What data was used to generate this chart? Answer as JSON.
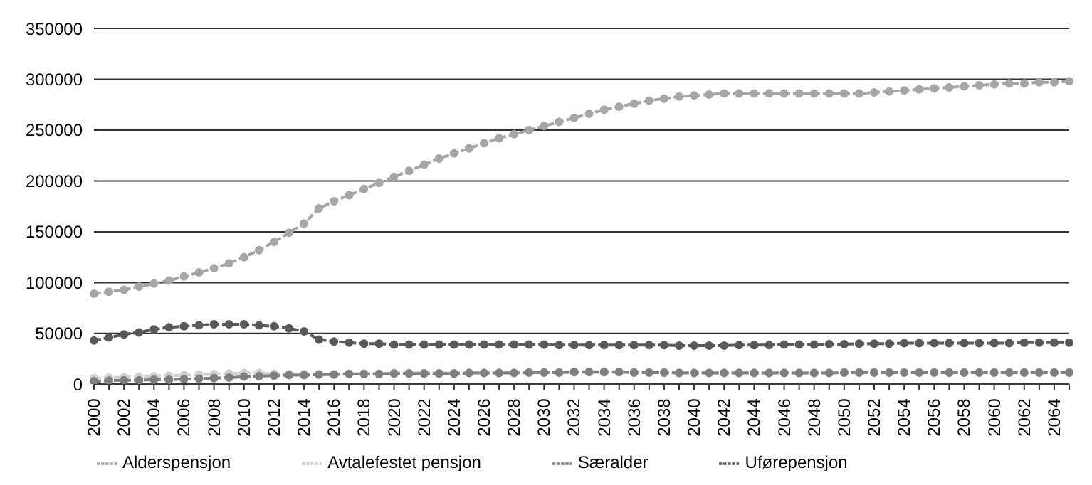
{
  "chart_data": {
    "type": "line",
    "categories": [
      "2000",
      null,
      "2002",
      null,
      "2004",
      null,
      "2006",
      null,
      "2008",
      null,
      "2010",
      null,
      "2012",
      null,
      "2014",
      null,
      "2016",
      null,
      "2018",
      null,
      "2020",
      null,
      "2022",
      null,
      "2024",
      null,
      "2026",
      null,
      "2028",
      null,
      "2030",
      null,
      "2032",
      null,
      "2034",
      null,
      "2036",
      null,
      "2038",
      null,
      "2040",
      null,
      "2042",
      null,
      "2044",
      null,
      "2046",
      null,
      "2048",
      null,
      "2050",
      null,
      "2052",
      null,
      "2054",
      null,
      "2056",
      null,
      "2058",
      null,
      "2060",
      null,
      "2062",
      null,
      "2064",
      null
    ],
    "series": [
      {
        "name": "Alderspensjon",
        "color": "#a6a6a6",
        "values": [
          89000,
          91000,
          93000,
          96000,
          99000,
          102000,
          106000,
          110000,
          114000,
          119000,
          125000,
          132000,
          140000,
          149000,
          158000,
          173000,
          180000,
          186000,
          192000,
          198000,
          204000,
          210000,
          216000,
          222000,
          227000,
          232000,
          237000,
          242000,
          246000,
          250000,
          254000,
          258000,
          262000,
          266000,
          270000,
          273000,
          276000,
          279000,
          281000,
          283000,
          284000,
          285000,
          286000,
          286000,
          286000,
          286000,
          286000,
          286000,
          286000,
          286000,
          286000,
          286000,
          287000,
          288000,
          289000,
          290000,
          291000,
          292000,
          293000,
          294000,
          295000,
          296000,
          296000,
          297000,
          297000,
          298000
        ]
      },
      {
        "name": "Avtalefestet pensjon",
        "color": "#d0d0d0",
        "values": [
          6000,
          6500,
          7000,
          7500,
          8000,
          8500,
          9000,
          9500,
          10000,
          10500,
          11000,
          11000,
          10500,
          10000,
          10000,
          10000,
          10000,
          10500,
          10500,
          10500,
          11000,
          11000,
          11000,
          11000,
          11000,
          11500,
          11500,
          11500,
          11500,
          12000,
          12000,
          12000,
          12500,
          12500,
          12500,
          12500,
          12000,
          12000,
          12000,
          11500,
          11500,
          11500,
          11500,
          11500,
          11500,
          11500,
          11500,
          11500,
          11500,
          11500,
          12000,
          12000,
          12000,
          12000,
          12000,
          12000,
          12000,
          12000,
          12000,
          12000,
          12000,
          12000,
          12000,
          12000,
          12000,
          12000
        ]
      },
      {
        "name": "Særalder",
        "color": "#7f7f7f",
        "values": [
          3000,
          3500,
          4000,
          4000,
          4500,
          4500,
          5000,
          5500,
          6000,
          6500,
          7500,
          8000,
          8500,
          9000,
          9000,
          9500,
          9500,
          10000,
          10000,
          10000,
          10500,
          10500,
          10500,
          10500,
          10500,
          11000,
          11000,
          11000,
          11000,
          11500,
          11500,
          11500,
          12000,
          12000,
          12000,
          12000,
          11500,
          11500,
          11500,
          11000,
          11000,
          11000,
          11000,
          11000,
          11000,
          11000,
          11000,
          11000,
          11000,
          11000,
          11500,
          11500,
          11500,
          11500,
          11500,
          11500,
          11500,
          11500,
          11500,
          11500,
          11500,
          11500,
          11500,
          11500,
          11500,
          11500
        ]
      },
      {
        "name": "Uførepensjon",
        "color": "#595959",
        "values": [
          43000,
          46000,
          49000,
          51000,
          54000,
          56000,
          57000,
          58000,
          59000,
          59000,
          59000,
          58000,
          57000,
          55000,
          52000,
          44000,
          42000,
          41000,
          40000,
          40000,
          39000,
          39000,
          39000,
          39000,
          39000,
          39000,
          39000,
          39000,
          39000,
          39000,
          39000,
          38500,
          38500,
          38500,
          38500,
          38500,
          38500,
          38500,
          38500,
          38000,
          38000,
          38000,
          38000,
          38500,
          38500,
          38500,
          39000,
          39000,
          39000,
          39500,
          39500,
          40000,
          40000,
          40000,
          40500,
          40500,
          40500,
          40500,
          40500,
          40500,
          40500,
          40500,
          41000,
          41000,
          41000,
          41000
        ]
      }
    ],
    "ylim": [
      0,
      350000
    ],
    "yticks": [
      0,
      50000,
      100000,
      150000,
      200000,
      250000,
      300000,
      350000
    ],
    "grid": "y",
    "legend": "bottom",
    "marker": "circle",
    "line_style": "dashed"
  }
}
